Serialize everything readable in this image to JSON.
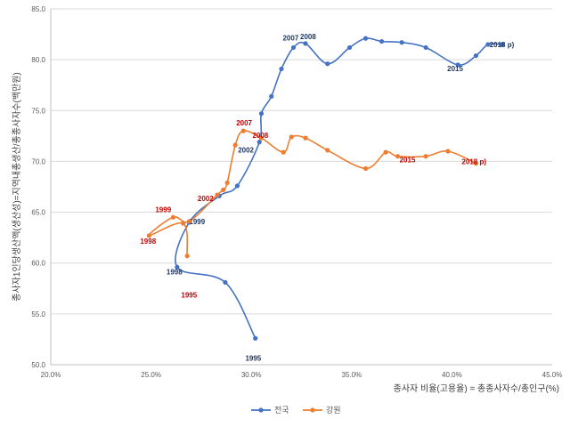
{
  "chart_data": {
    "type": "line",
    "title": "",
    "xlabel": "종사자 비율(고용율) = 총종사자수/총인구(%)",
    "ylabel": "종사자1인당생산액(생산성)=지역내총생산/총종사자수(백만원)",
    "xlim": [
      20.0,
      45.0
    ],
    "ylim": [
      50.0,
      85.0
    ],
    "x_ticks": [
      "20.0%",
      "25.0%",
      "30.0%",
      "35.0%",
      "40.0%",
      "45.0%"
    ],
    "y_ticks": [
      "50.0",
      "55.0",
      "60.0",
      "65.0",
      "70.0",
      "75.0",
      "80.0",
      "85.0"
    ],
    "grid": "horizontal",
    "legend_position": "bottom-center",
    "series": [
      {
        "name": "전국",
        "color": "#4472C4",
        "label_color": "#1F3864",
        "points": [
          {
            "x": 30.2,
            "y": 52.6,
            "label": "1995"
          },
          {
            "x": 28.7,
            "y": 58.1,
            "label": ""
          },
          {
            "x": 26.3,
            "y": 59.6,
            "label": "1998"
          },
          {
            "x": 26.9,
            "y": 64.0,
            "label": "1999"
          },
          {
            "x": 28.4,
            "y": 66.6,
            "label": ""
          },
          {
            "x": 29.3,
            "y": 67.6,
            "label": ""
          },
          {
            "x": 30.4,
            "y": 71.9,
            "label": "2002"
          },
          {
            "x": 30.5,
            "y": 74.7,
            "label": ""
          },
          {
            "x": 31.0,
            "y": 76.4,
            "label": ""
          },
          {
            "x": 31.5,
            "y": 79.1,
            "label": ""
          },
          {
            "x": 32.1,
            "y": 81.2,
            "label": "2007"
          },
          {
            "x": 32.7,
            "y": 81.6,
            "label": "2008"
          },
          {
            "x": 33.8,
            "y": 79.6,
            "label": ""
          },
          {
            "x": 34.9,
            "y": 81.2,
            "label": ""
          },
          {
            "x": 35.7,
            "y": 82.1,
            "label": ""
          },
          {
            "x": 36.5,
            "y": 81.8,
            "label": ""
          },
          {
            "x": 37.5,
            "y": 81.7,
            "label": ""
          },
          {
            "x": 38.7,
            "y": 81.2,
            "label": ""
          },
          {
            "x": 40.3,
            "y": 79.5,
            "label": "2015"
          },
          {
            "x": 41.2,
            "y": 80.4,
            "label": ""
          },
          {
            "x": 41.8,
            "y": 81.5,
            "label": ""
          },
          {
            "x": 42.5,
            "y": 81.5,
            "label": "2018 p)"
          }
        ]
      },
      {
        "name": "강원",
        "color": "#ED7D31",
        "label_color": "#C00000",
        "points": [
          {
            "x": 26.8,
            "y": 60.7,
            "label": "1995"
          },
          {
            "x": 26.6,
            "y": 63.9,
            "label": ""
          },
          {
            "x": 24.9,
            "y": 62.7,
            "label": "1998"
          },
          {
            "x": 26.1,
            "y": 64.5,
            "label": "1999"
          },
          {
            "x": 26.9,
            "y": 64.1,
            "label": ""
          },
          {
            "x": 28.3,
            "y": 66.7,
            "label": "2002"
          },
          {
            "x": 28.6,
            "y": 67.2,
            "label": ""
          },
          {
            "x": 28.8,
            "y": 67.9,
            "label": ""
          },
          {
            "x": 29.2,
            "y": 71.6,
            "label": ""
          },
          {
            "x": 29.6,
            "y": 73.0,
            "label": "2007"
          },
          {
            "x": 30.5,
            "y": 72.3,
            "label": "2008"
          },
          {
            "x": 31.6,
            "y": 70.9,
            "label": ""
          },
          {
            "x": 32.0,
            "y": 72.4,
            "label": ""
          },
          {
            "x": 32.7,
            "y": 72.3,
            "label": ""
          },
          {
            "x": 33.8,
            "y": 71.1,
            "label": ""
          },
          {
            "x": 35.7,
            "y": 69.3,
            "label": ""
          },
          {
            "x": 36.7,
            "y": 70.9,
            "label": ""
          },
          {
            "x": 37.3,
            "y": 70.5,
            "label": "2015"
          },
          {
            "x": 38.7,
            "y": 70.5,
            "label": ""
          },
          {
            "x": 39.8,
            "y": 71.0,
            "label": ""
          },
          {
            "x": 41.2,
            "y": 69.8,
            "label": "2018 p)"
          }
        ]
      }
    ],
    "manual_labels": [
      {
        "series": "강원",
        "text": "1995",
        "x": 26.5,
        "y": 56.6
      },
      {
        "series": "전국",
        "text": "1995",
        "x": 29.7,
        "y": 50.4
      }
    ]
  }
}
